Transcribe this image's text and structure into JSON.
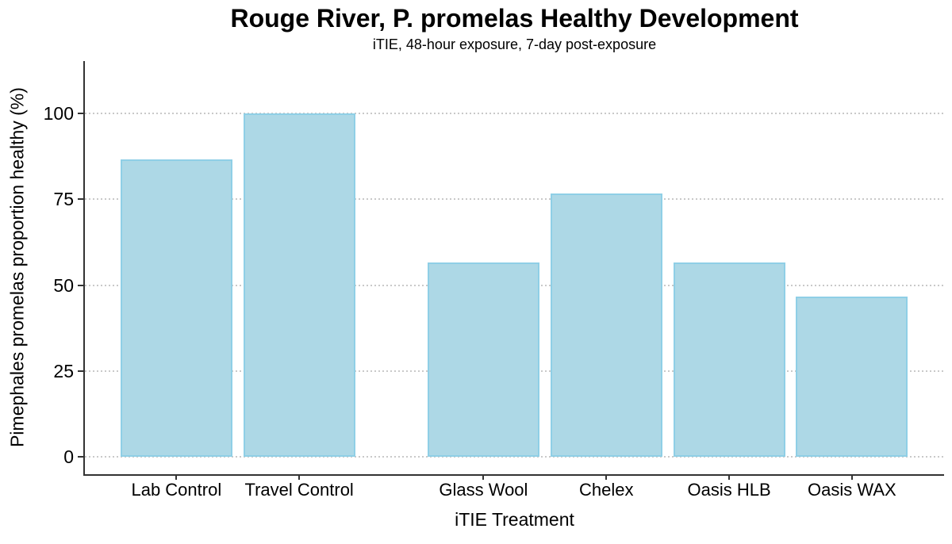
{
  "chart_data": {
    "type": "bar",
    "title": "Rouge River, P. promelas Healthy Development",
    "subtitle": "iTIE, 48-hour exposure, 7-day post-exposure",
    "xlabel": "iTIE Treatment",
    "ylabel": "Pimephales promelas proportion healthy (%)",
    "categories": [
      "Lab Control",
      "Travel Control",
      "Glass Wool",
      "Chelex",
      "Oasis HLB",
      "Oasis WAX"
    ],
    "values": [
      86.7,
      100,
      56.7,
      76.7,
      56.7,
      46.7
    ],
    "y_ticks": [
      0,
      25,
      50,
      75,
      100
    ],
    "ylim": [
      0,
      100
    ],
    "grid": "horizontal-dotted",
    "legend": "none",
    "layout_hints": {
      "y_domain": [
        -5,
        115.2
      ],
      "x_domain": [
        0.255,
        7.25
      ],
      "x_positions": [
        1,
        2,
        3.5,
        4.5,
        5.5,
        6.5
      ],
      "bar_width_units": 0.91
    },
    "colors": {
      "bar_fill": "#ADD8E6",
      "bar_stroke": "#8FCFE6",
      "axis_line": "#333333",
      "gridline": "#C9C9C9",
      "text": "#000000",
      "background": "#FFFFFF"
    }
  }
}
